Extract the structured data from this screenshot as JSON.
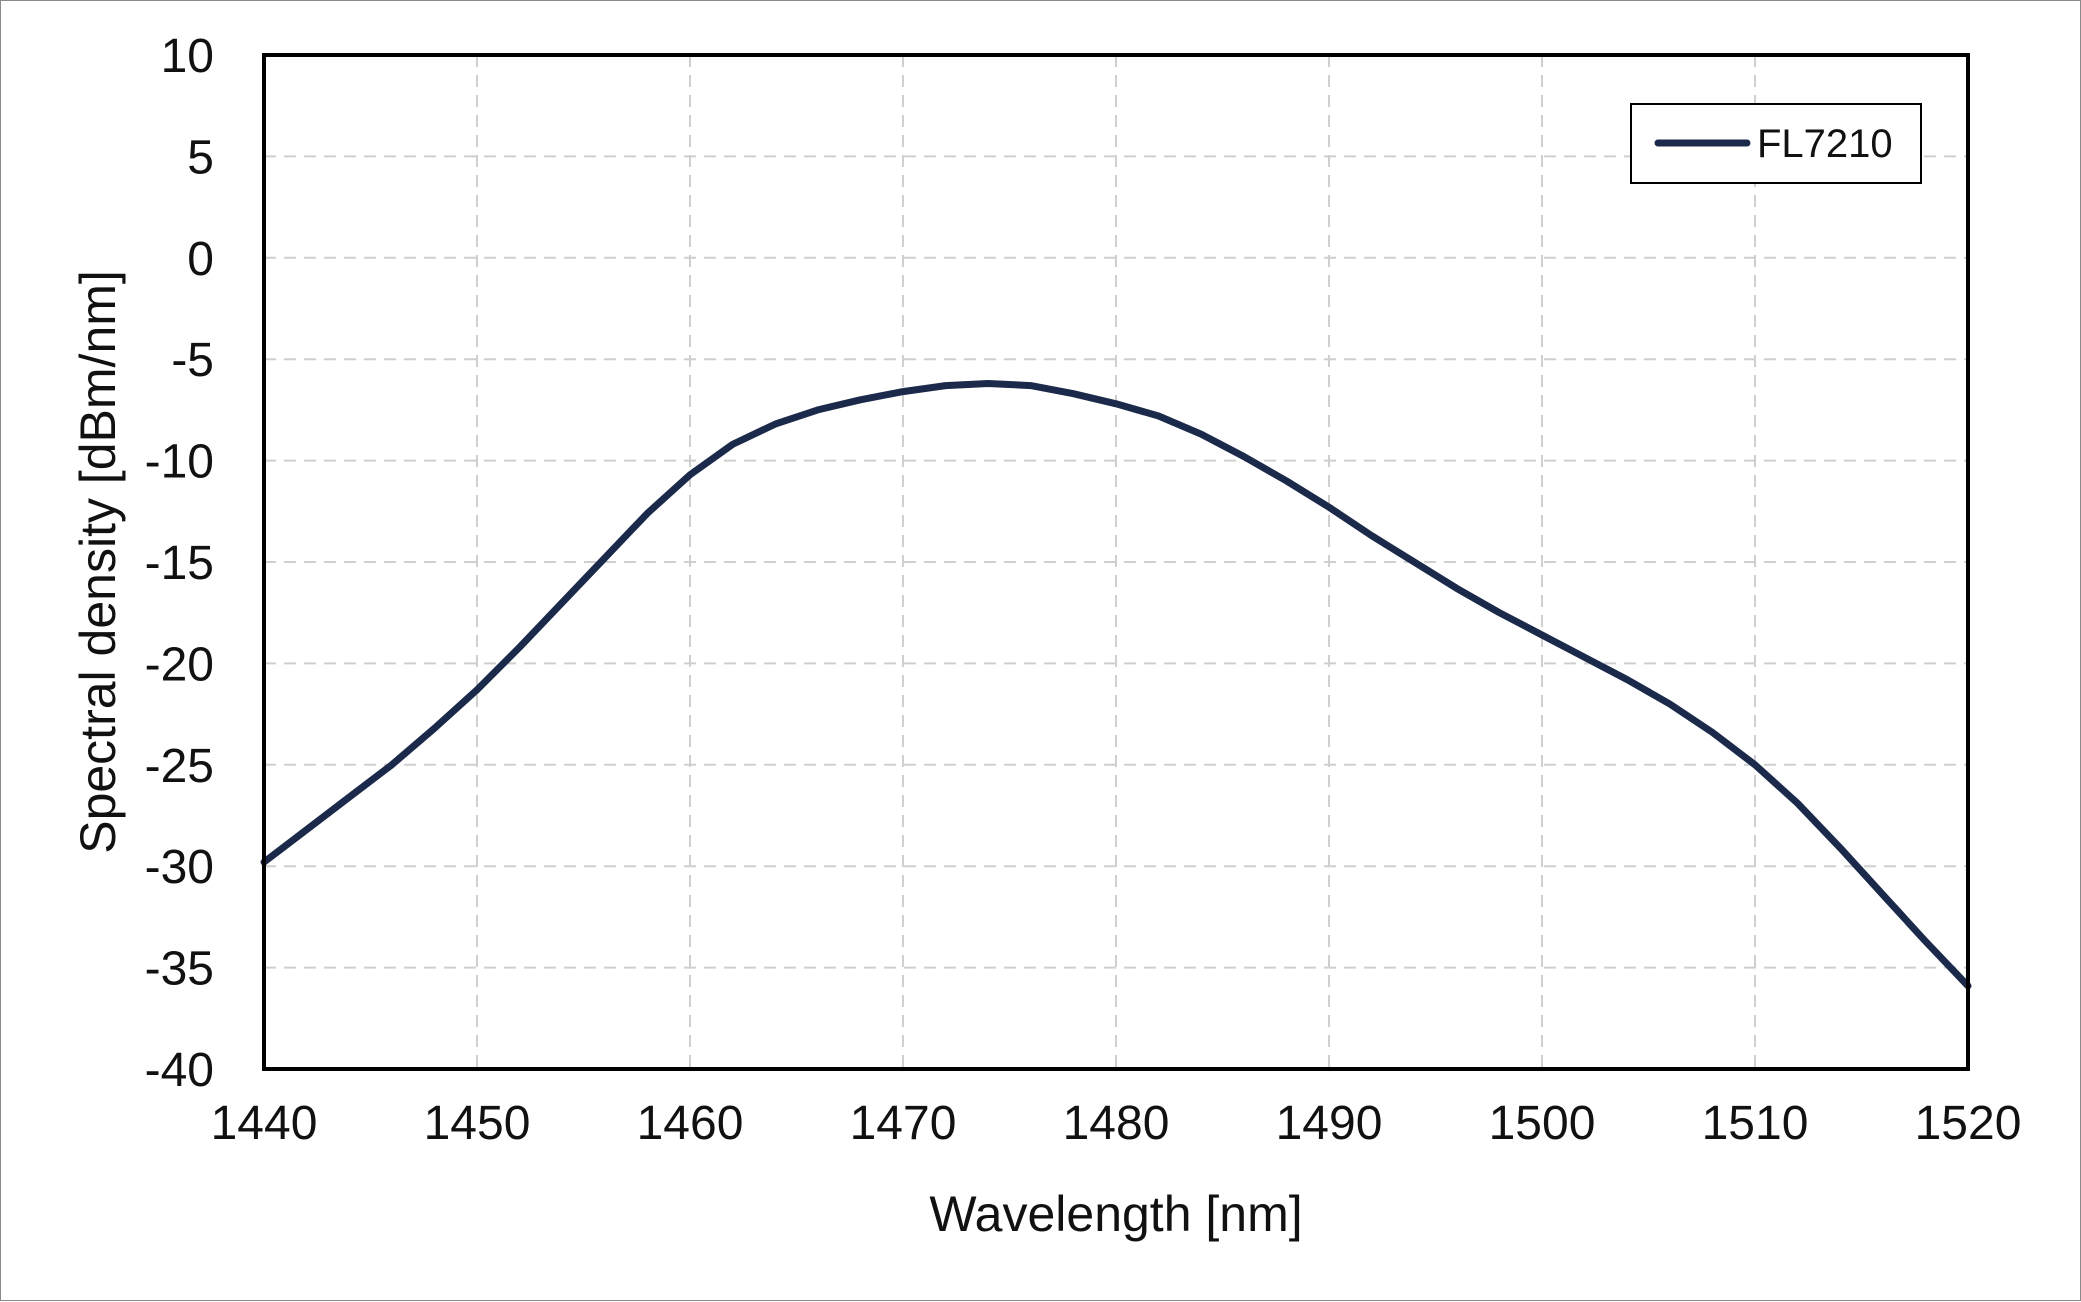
{
  "chart_data": {
    "type": "line",
    "title": "",
    "xlabel": "Wavelength [nm]",
    "ylabel": "Spectral density [dBm/nm]",
    "xlim": [
      1440,
      1520
    ],
    "ylim": [
      -40,
      10
    ],
    "xticks": [
      1440,
      1450,
      1460,
      1470,
      1480,
      1490,
      1500,
      1510,
      1520
    ],
    "yticks": [
      10,
      5,
      0,
      -5,
      -10,
      -15,
      -20,
      -25,
      -30,
      -35,
      -40
    ],
    "xtick_labels": [
      "1440",
      "1450",
      "1460",
      "1470",
      "1480",
      "1490",
      "1500",
      "1510",
      "1520"
    ],
    "ytick_labels": [
      "10",
      "5",
      "0",
      "-5",
      "-10",
      "-15",
      "-20",
      "-25",
      "-30",
      "-35",
      "-40"
    ],
    "grid": true,
    "grid_style": "dashed",
    "legend_position": "top-right",
    "series": [
      {
        "name": "FL7210",
        "color": "#1b2a4a",
        "x": [
          1440,
          1442,
          1444,
          1446,
          1448,
          1450,
          1452,
          1454,
          1456,
          1458,
          1460,
          1462,
          1464,
          1466,
          1468,
          1470,
          1472,
          1474,
          1476,
          1478,
          1480,
          1482,
          1484,
          1486,
          1488,
          1490,
          1492,
          1494,
          1496,
          1498,
          1500,
          1502,
          1504,
          1506,
          1508,
          1510,
          1512,
          1514,
          1516,
          1518,
          1520
        ],
        "y": [
          -29.8,
          -28.2,
          -26.6,
          -25.0,
          -23.2,
          -21.3,
          -19.2,
          -17.0,
          -14.8,
          -12.6,
          -10.7,
          -9.2,
          -8.2,
          -7.5,
          -7.0,
          -6.6,
          -6.3,
          -6.2,
          -6.3,
          -6.7,
          -7.2,
          -7.8,
          -8.7,
          -9.8,
          -11.0,
          -12.3,
          -13.7,
          -15.0,
          -16.3,
          -17.5,
          -18.6,
          -19.7,
          -20.8,
          -22.0,
          -23.4,
          -25.0,
          -26.9,
          -29.1,
          -31.4,
          -33.7,
          -35.9
        ]
      }
    ]
  }
}
